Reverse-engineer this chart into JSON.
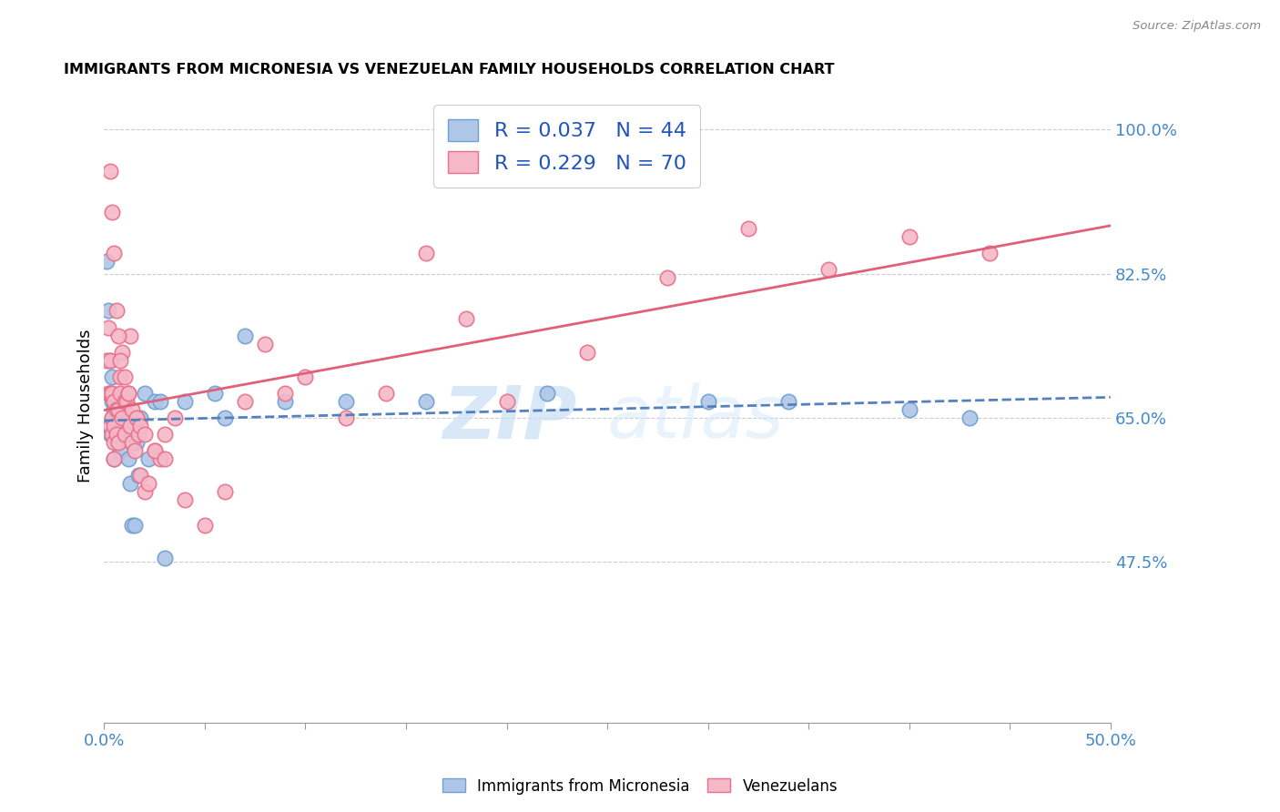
{
  "title": "IMMIGRANTS FROM MICRONESIA VS VENEZUELAN FAMILY HOUSEHOLDS CORRELATION CHART",
  "source": "Source: ZipAtlas.com",
  "ylabel": "Family Households",
  "ytick_labels": [
    "47.5%",
    "65.0%",
    "82.5%",
    "100.0%"
  ],
  "ytick_values": [
    0.475,
    0.65,
    0.825,
    1.0
  ],
  "xmin": 0.0,
  "xmax": 0.5,
  "ymin": 0.28,
  "ymax": 1.05,
  "micronesia_color": "#aec6e8",
  "venezuelan_color": "#f5b8c8",
  "micronesia_edge_color": "#6fa0d0",
  "venezuelan_edge_color": "#e8708a",
  "micronesia_line_color": "#5580c0",
  "venezuelan_line_color": "#e0607a",
  "micronesia_R": 0.037,
  "micronesia_N": 44,
  "venezuelan_R": 0.229,
  "venezuelan_N": 70,
  "legend_label_1": "R = 0.037   N = 44",
  "legend_label_2": "R = 0.229   N = 70",
  "watermark_zip": "ZIP",
  "watermark_atlas": "atlas",
  "micronesia_x": [
    0.001,
    0.002,
    0.003,
    0.003,
    0.003,
    0.004,
    0.004,
    0.004,
    0.005,
    0.005,
    0.005,
    0.006,
    0.006,
    0.007,
    0.007,
    0.008,
    0.008,
    0.009,
    0.01,
    0.011,
    0.012,
    0.013,
    0.014,
    0.015,
    0.016,
    0.017,
    0.018,
    0.02,
    0.022,
    0.025,
    0.028,
    0.03,
    0.04,
    0.055,
    0.06,
    0.07,
    0.09,
    0.12,
    0.16,
    0.22,
    0.3,
    0.34,
    0.4,
    0.43
  ],
  "micronesia_y": [
    0.84,
    0.78,
    0.72,
    0.68,
    0.63,
    0.7,
    0.67,
    0.65,
    0.66,
    0.63,
    0.6,
    0.65,
    0.62,
    0.66,
    0.63,
    0.67,
    0.61,
    0.65,
    0.66,
    0.64,
    0.6,
    0.57,
    0.52,
    0.52,
    0.62,
    0.58,
    0.65,
    0.68,
    0.6,
    0.67,
    0.67,
    0.48,
    0.67,
    0.68,
    0.65,
    0.75,
    0.67,
    0.67,
    0.67,
    0.68,
    0.67,
    0.67,
    0.66,
    0.65
  ],
  "venezuelan_x": [
    0.001,
    0.002,
    0.002,
    0.003,
    0.003,
    0.003,
    0.004,
    0.004,
    0.004,
    0.005,
    0.005,
    0.005,
    0.005,
    0.006,
    0.006,
    0.007,
    0.007,
    0.008,
    0.008,
    0.009,
    0.009,
    0.01,
    0.01,
    0.011,
    0.012,
    0.013,
    0.013,
    0.014,
    0.015,
    0.016,
    0.017,
    0.018,
    0.02,
    0.022,
    0.025,
    0.028,
    0.03,
    0.035,
    0.04,
    0.05,
    0.06,
    0.07,
    0.08,
    0.09,
    0.1,
    0.12,
    0.14,
    0.16,
    0.18,
    0.2,
    0.24,
    0.28,
    0.32,
    0.36,
    0.4,
    0.44,
    0.003,
    0.004,
    0.005,
    0.006,
    0.007,
    0.008,
    0.01,
    0.012,
    0.014,
    0.016,
    0.018,
    0.02,
    0.025,
    0.03
  ],
  "venezuelan_y": [
    0.72,
    0.76,
    0.68,
    0.72,
    0.68,
    0.64,
    0.68,
    0.65,
    0.63,
    0.67,
    0.64,
    0.62,
    0.6,
    0.66,
    0.63,
    0.66,
    0.62,
    0.7,
    0.68,
    0.65,
    0.73,
    0.67,
    0.63,
    0.67,
    0.68,
    0.64,
    0.75,
    0.62,
    0.61,
    0.65,
    0.63,
    0.58,
    0.56,
    0.57,
    0.61,
    0.6,
    0.63,
    0.65,
    0.55,
    0.52,
    0.56,
    0.67,
    0.74,
    0.68,
    0.7,
    0.65,
    0.68,
    0.85,
    0.77,
    0.67,
    0.73,
    0.82,
    0.88,
    0.83,
    0.87,
    0.85,
    0.95,
    0.9,
    0.85,
    0.78,
    0.75,
    0.72,
    0.7,
    0.68,
    0.66,
    0.65,
    0.64,
    0.63,
    0.61,
    0.6
  ],
  "xtick_positions": [
    0.0,
    0.05,
    0.1,
    0.15,
    0.2,
    0.25,
    0.3,
    0.35,
    0.4,
    0.45,
    0.5
  ],
  "xtick_edge_positions": [
    0.0,
    0.1,
    0.2,
    0.3,
    0.4,
    0.5
  ]
}
